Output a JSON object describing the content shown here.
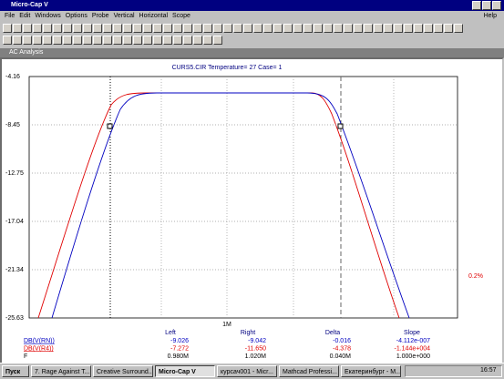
{
  "window_title": "Micro-Cap V",
  "menu": [
    "File",
    "Edit",
    "Windows",
    "Options",
    "Probe",
    "Vertical",
    "Horizontal",
    "Scope"
  ],
  "help": "Help",
  "subwindow_title": "AC Analysis",
  "plot": {
    "header": "CURS5.CIR Temperature= 27 Case= 1",
    "y_labels": [
      "-4.16",
      "-8.45",
      "-12.75",
      "-17.04",
      "-21.34",
      "-25.63"
    ],
    "x_label": "1M",
    "side_label": "0.2%"
  },
  "cursor_table": {
    "columns": [
      "Left",
      "Right",
      "Delta",
      "Slope"
    ],
    "rows": [
      {
        "name": "DB(V(RN))",
        "cells": [
          "-9.026",
          "-9.042",
          "-0.016",
          "-4.112e-007"
        ]
      },
      {
        "name": "DB(V(R4))",
        "cells": [
          "-7.272",
          "-11.650",
          "-4.378",
          "-1.144e+004"
        ]
      },
      {
        "name": "F",
        "cells": [
          "0.980M",
          "1.020M",
          "0.040M",
          "1.000e+000"
        ]
      }
    ]
  },
  "taskbar": {
    "start": "Пуск",
    "items": [
      "7. Rage Against T...",
      "Creative Surround...",
      "Micro-Cap V",
      "курсач001 - Micr...",
      "Mathcad Professi...",
      "Екатеринбург - M..."
    ],
    "clock": "16:57"
  }
}
